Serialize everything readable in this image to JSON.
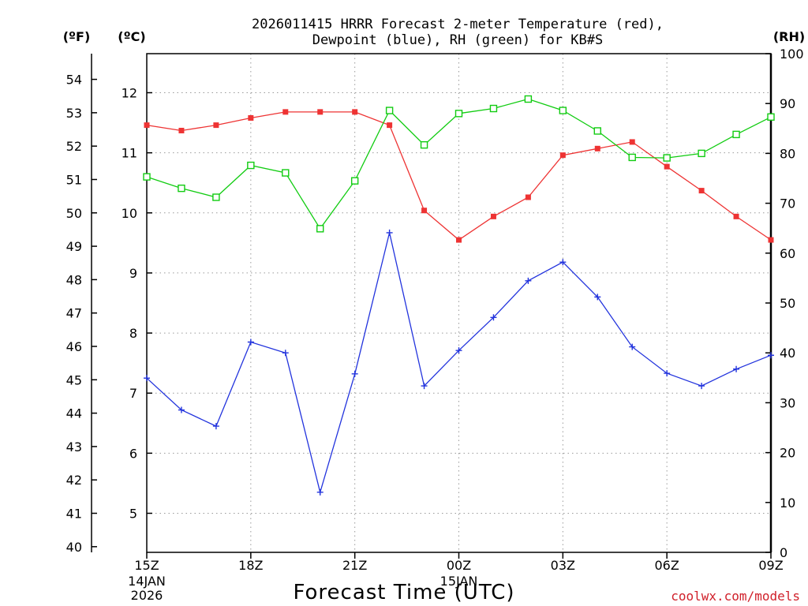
{
  "chart_data": {
    "type": "line",
    "title": [
      "2026011415 HRRR Forecast 2-meter Temperature (red),",
      "Dewpoint (blue), RH (green) for KB#S"
    ],
    "xlabel": "Forecast Time (UTC)",
    "watermark": "coolwx.com/models",
    "axis_units": {
      "fahrenheit": "(ºF)",
      "celsius": "(ºC)",
      "rh": "(RH)"
    },
    "x_ticks": [
      {
        "hour": 0,
        "label": "15Z",
        "sub": [
          "14JAN",
          "2026"
        ]
      },
      {
        "hour": 3,
        "label": "18Z",
        "sub": []
      },
      {
        "hour": 6,
        "label": "21Z",
        "sub": []
      },
      {
        "hour": 9,
        "label": "00Z",
        "sub": [
          "15JAN"
        ]
      },
      {
        "hour": 12,
        "label": "03Z",
        "sub": []
      },
      {
        "hour": 15,
        "label": "06Z",
        "sub": []
      },
      {
        "hour": 18,
        "label": "09Z",
        "sub": []
      }
    ],
    "xlim": [
      0,
      18
    ],
    "celsius_axis": {
      "ylim": [
        4.35,
        12.65
      ],
      "ticks": [
        5,
        6,
        7,
        8,
        9,
        10,
        11,
        12
      ]
    },
    "fahrenheit_axis": {
      "ticks": [
        40,
        41,
        42,
        43,
        44,
        45,
        46,
        47,
        48,
        49,
        50,
        51,
        52,
        53,
        54
      ]
    },
    "rh_axis": {
      "ylim": [
        0,
        100
      ],
      "ticks": [
        0,
        10,
        20,
        30,
        40,
        50,
        60,
        70,
        80,
        90,
        100
      ]
    },
    "grid": true,
    "colors": {
      "temperature": "#ee3333",
      "dewpoint": "#2233dd",
      "rh": "#11cc11",
      "grid": "#9a9a9a"
    },
    "series": [
      {
        "name": "Temperature",
        "axis": "celsius",
        "marker": "filled-square",
        "x": [
          0,
          1,
          2,
          3,
          4,
          5,
          6,
          7,
          8,
          9,
          10,
          11,
          12,
          13,
          14,
          15,
          16,
          17,
          18
        ],
        "values": [
          11.46,
          11.37,
          11.46,
          11.58,
          11.68,
          11.68,
          11.68,
          11.46,
          10.04,
          9.55,
          9.94,
          10.26,
          10.96,
          11.07,
          11.18,
          10.77,
          10.37,
          9.94,
          9.55
        ]
      },
      {
        "name": "Dewpoint",
        "axis": "celsius",
        "marker": "plus",
        "x": [
          0,
          1,
          2,
          3,
          4,
          5,
          6,
          7,
          8,
          9,
          10,
          11,
          12,
          13,
          14,
          15,
          16,
          17,
          18
        ],
        "values": [
          7.25,
          6.72,
          6.45,
          7.85,
          7.67,
          5.35,
          7.32,
          9.67,
          7.12,
          7.71,
          8.26,
          8.87,
          9.18,
          8.6,
          7.77,
          7.33,
          7.12,
          7.4,
          7.63
        ]
      },
      {
        "name": "RH",
        "axis": "rh",
        "marker": "open-square",
        "x": [
          0,
          1,
          2,
          3,
          4,
          5,
          6,
          7,
          8,
          9,
          10,
          11,
          12,
          13,
          14,
          15,
          16,
          17,
          18
        ],
        "values": [
          75.3,
          73.0,
          71.2,
          77.6,
          76.1,
          64.9,
          74.5,
          88.6,
          81.7,
          88.0,
          89.0,
          90.9,
          88.6,
          84.5,
          79.2,
          79.1,
          80.0,
          83.8,
          87.3
        ]
      }
    ]
  }
}
